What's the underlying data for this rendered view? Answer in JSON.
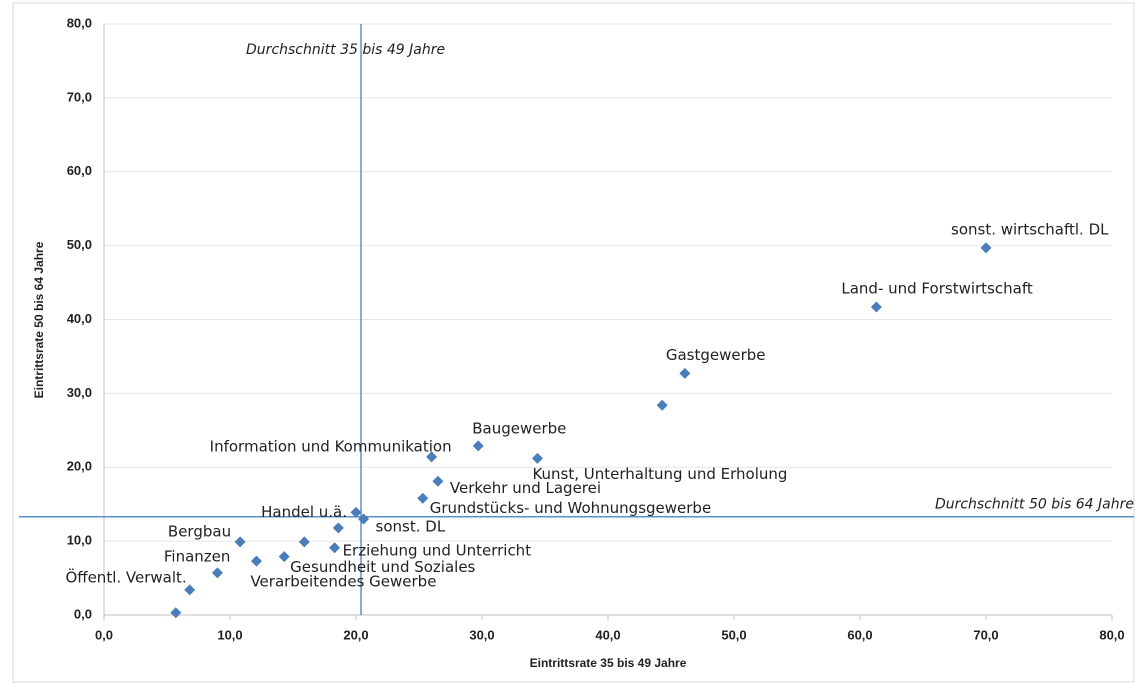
{
  "chart_data": {
    "type": "scatter",
    "x_label": "Eintrittsrate 35 bis 49 Jahre",
    "y_label": "Eintrittsrate 50 bis 64 Jahre",
    "color": "#4a7ebb",
    "xlim": [
      0,
      80
    ],
    "ylim": [
      0,
      80
    ],
    "xticks": [
      {
        "value": 0,
        "label": "0,0"
      },
      {
        "value": 10,
        "label": "10,0"
      },
      {
        "value": 20,
        "label": "20,0"
      },
      {
        "value": 30,
        "label": "30,0"
      },
      {
        "value": 40,
        "label": "40,0"
      },
      {
        "value": 50,
        "label": "50,0"
      },
      {
        "value": 60,
        "label": "60,0"
      },
      {
        "value": 70,
        "label": "70,0"
      },
      {
        "value": 80,
        "label": "80,0"
      }
    ],
    "yticks": [
      {
        "value": 0,
        "label": "0,0"
      },
      {
        "value": 10,
        "label": "10,0"
      },
      {
        "value": 20,
        "label": "20,0"
      },
      {
        "value": 30,
        "label": "30,0"
      },
      {
        "value": 40,
        "label": "40,0"
      },
      {
        "value": 50,
        "label": "50,0"
      },
      {
        "value": 60,
        "label": "60,0"
      },
      {
        "value": 70,
        "label": "70,0"
      },
      {
        "value": 80,
        "label": "80,0"
      }
    ],
    "grid": true,
    "x": [
      70.0,
      61.3,
      46.1,
      44.3,
      29.7,
      34.4,
      26.0,
      26.5,
      25.3,
      20.0,
      20.6,
      18.6,
      18.3,
      15.9,
      14.3,
      12.1,
      10.8,
      9.0,
      6.8,
      5.7
    ],
    "y": [
      49.7,
      41.7,
      32.7,
      28.4,
      22.9,
      21.2,
      21.4,
      18.1,
      15.8,
      13.9,
      13.0,
      11.8,
      9.1,
      9.9,
      7.9,
      7.3,
      9.9,
      5.7,
      3.4,
      0.3
    ],
    "labels": [
      "sonst. wirtschaftl. DL",
      "Land- und Forstwirtschaft",
      "Gastgewerbe",
      null,
      "Baugewerbe",
      "Kunst, Unterhaltung und Erholung",
      "Information und Kommunikation",
      "Verkehr und Lagerei",
      "Grundstücks- und Wohnungsgewerbe",
      "Handel u.ä.",
      "sonst. DL",
      null,
      "Erziehung und Unterricht",
      null,
      "Gesundheit und Soziales",
      "Verarbeitendes Gewerbe",
      "Bergbau",
      "Finanzen",
      "Öffentl. Verwalt.",
      null
    ],
    "reference_lines": [
      {
        "axis": "x",
        "value": 20.4,
        "label": "Durchschnitt 35 bis 49 Jahre",
        "color": "#5b8fd0"
      },
      {
        "axis": "y",
        "value": 13.3,
        "label": "Durchschnitt 50 bis 64 Jahre",
        "color": "#5b8fd0"
      }
    ]
  }
}
